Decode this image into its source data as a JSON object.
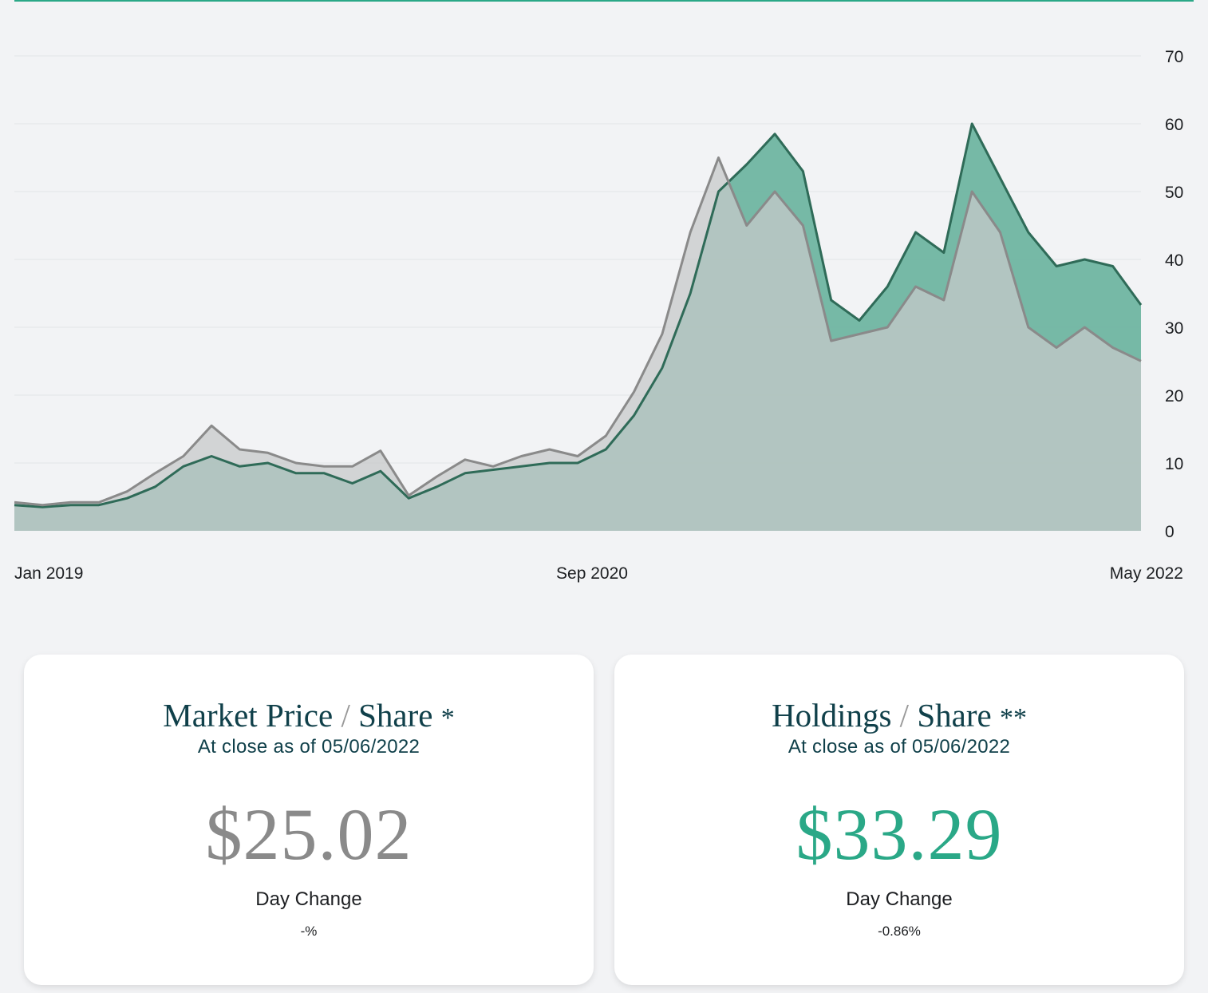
{
  "chart_data": {
    "type": "area",
    "x_tick_labels": [
      "Jan 2019",
      "Sep 2020",
      "May 2022"
    ],
    "y_ticks": [
      0,
      10,
      20,
      30,
      40,
      50,
      60,
      70
    ],
    "ylim": [
      0,
      70
    ],
    "grid": true,
    "y_axis_side": "right",
    "series": [
      {
        "color": "#2f6b58",
        "fill": "#6fb5a1",
        "points": [
          [
            "2019-01",
            3.8
          ],
          [
            "2019-02",
            3.5
          ],
          [
            "2019-03",
            3.8
          ],
          [
            "2019-04",
            3.8
          ],
          [
            "2019-05",
            4.8
          ],
          [
            "2019-06",
            6.5
          ],
          [
            "2019-07",
            9.5
          ],
          [
            "2019-08",
            11.0
          ],
          [
            "2019-09",
            9.5
          ],
          [
            "2019-10",
            10.0
          ],
          [
            "2019-11",
            8.5
          ],
          [
            "2019-12",
            8.5
          ],
          [
            "2020-01",
            7.0
          ],
          [
            "2020-02",
            8.8
          ],
          [
            "2020-03",
            4.8
          ],
          [
            "2020-04",
            6.5
          ],
          [
            "2020-05",
            8.5
          ],
          [
            "2020-06",
            9.0
          ],
          [
            "2020-07",
            9.5
          ],
          [
            "2020-08",
            10.0
          ],
          [
            "2020-09",
            10.0
          ],
          [
            "2020-10",
            12.0
          ],
          [
            "2020-11",
            17.0
          ],
          [
            "2020-12",
            24.0
          ],
          [
            "2021-01",
            35.0
          ],
          [
            "2021-02",
            50.0
          ],
          [
            "2021-03",
            54.0
          ],
          [
            "2021-04",
            58.5
          ],
          [
            "2021-05",
            53.0
          ],
          [
            "2021-06",
            34.0
          ],
          [
            "2021-07",
            31.0
          ],
          [
            "2021-08",
            36.0
          ],
          [
            "2021-09",
            44.0
          ],
          [
            "2021-10",
            41.0
          ],
          [
            "2021-11",
            60.0
          ],
          [
            "2021-12",
            52.0
          ],
          [
            "2022-01",
            44.0
          ],
          [
            "2022-02",
            39.0
          ],
          [
            "2022-03",
            40.0
          ],
          [
            "2022-04",
            39.0
          ],
          [
            "2022-05",
            33.29
          ]
        ]
      },
      {
        "color": "#8a8a8a",
        "fill": "#c7c9c9",
        "points": [
          [
            "2019-01",
            4.2
          ],
          [
            "2019-02",
            3.8
          ],
          [
            "2019-03",
            4.2
          ],
          [
            "2019-04",
            4.2
          ],
          [
            "2019-05",
            5.8
          ],
          [
            "2019-06",
            8.5
          ],
          [
            "2019-07",
            11.0
          ],
          [
            "2019-08",
            15.5
          ],
          [
            "2019-09",
            12.0
          ],
          [
            "2019-10",
            11.5
          ],
          [
            "2019-11",
            10.0
          ],
          [
            "2019-12",
            9.5
          ],
          [
            "2020-01",
            9.5
          ],
          [
            "2020-02",
            11.8
          ],
          [
            "2020-03",
            5.2
          ],
          [
            "2020-04",
            8.0
          ],
          [
            "2020-05",
            10.5
          ],
          [
            "2020-06",
            9.5
          ],
          [
            "2020-07",
            11.0
          ],
          [
            "2020-08",
            12.0
          ],
          [
            "2020-09",
            11.0
          ],
          [
            "2020-10",
            14.0
          ],
          [
            "2020-11",
            20.5
          ],
          [
            "2020-12",
            29.0
          ],
          [
            "2021-01",
            44.0
          ],
          [
            "2021-02",
            55.0
          ],
          [
            "2021-03",
            45.0
          ],
          [
            "2021-04",
            50.0
          ],
          [
            "2021-05",
            45.0
          ],
          [
            "2021-06",
            28.0
          ],
          [
            "2021-07",
            29.0
          ],
          [
            "2021-08",
            30.0
          ],
          [
            "2021-09",
            36.0
          ],
          [
            "2021-10",
            34.0
          ],
          [
            "2021-11",
            50.0
          ],
          [
            "2021-12",
            44.0
          ],
          [
            "2022-01",
            30.0
          ],
          [
            "2022-02",
            27.0
          ],
          [
            "2022-03",
            30.0
          ],
          [
            "2022-04",
            27.0
          ],
          [
            "2022-05",
            25.02
          ]
        ]
      }
    ]
  },
  "cards": {
    "market": {
      "title": "Market Price",
      "slash": "/",
      "title2": "Share",
      "mark": "*",
      "subtitle": "At close as of 05/06/2022",
      "price": "$25.02",
      "price_color": "#8a8a8a",
      "change_label": "Day Change",
      "change_value": "-%"
    },
    "holdings": {
      "title": "Holdings",
      "slash": "/",
      "title2": "Share",
      "mark": "**",
      "subtitle": "At close as of 05/06/2022",
      "price": "$33.29",
      "price_color": "#2aa887",
      "change_label": "Day Change",
      "change_value": "-0.86%"
    }
  }
}
